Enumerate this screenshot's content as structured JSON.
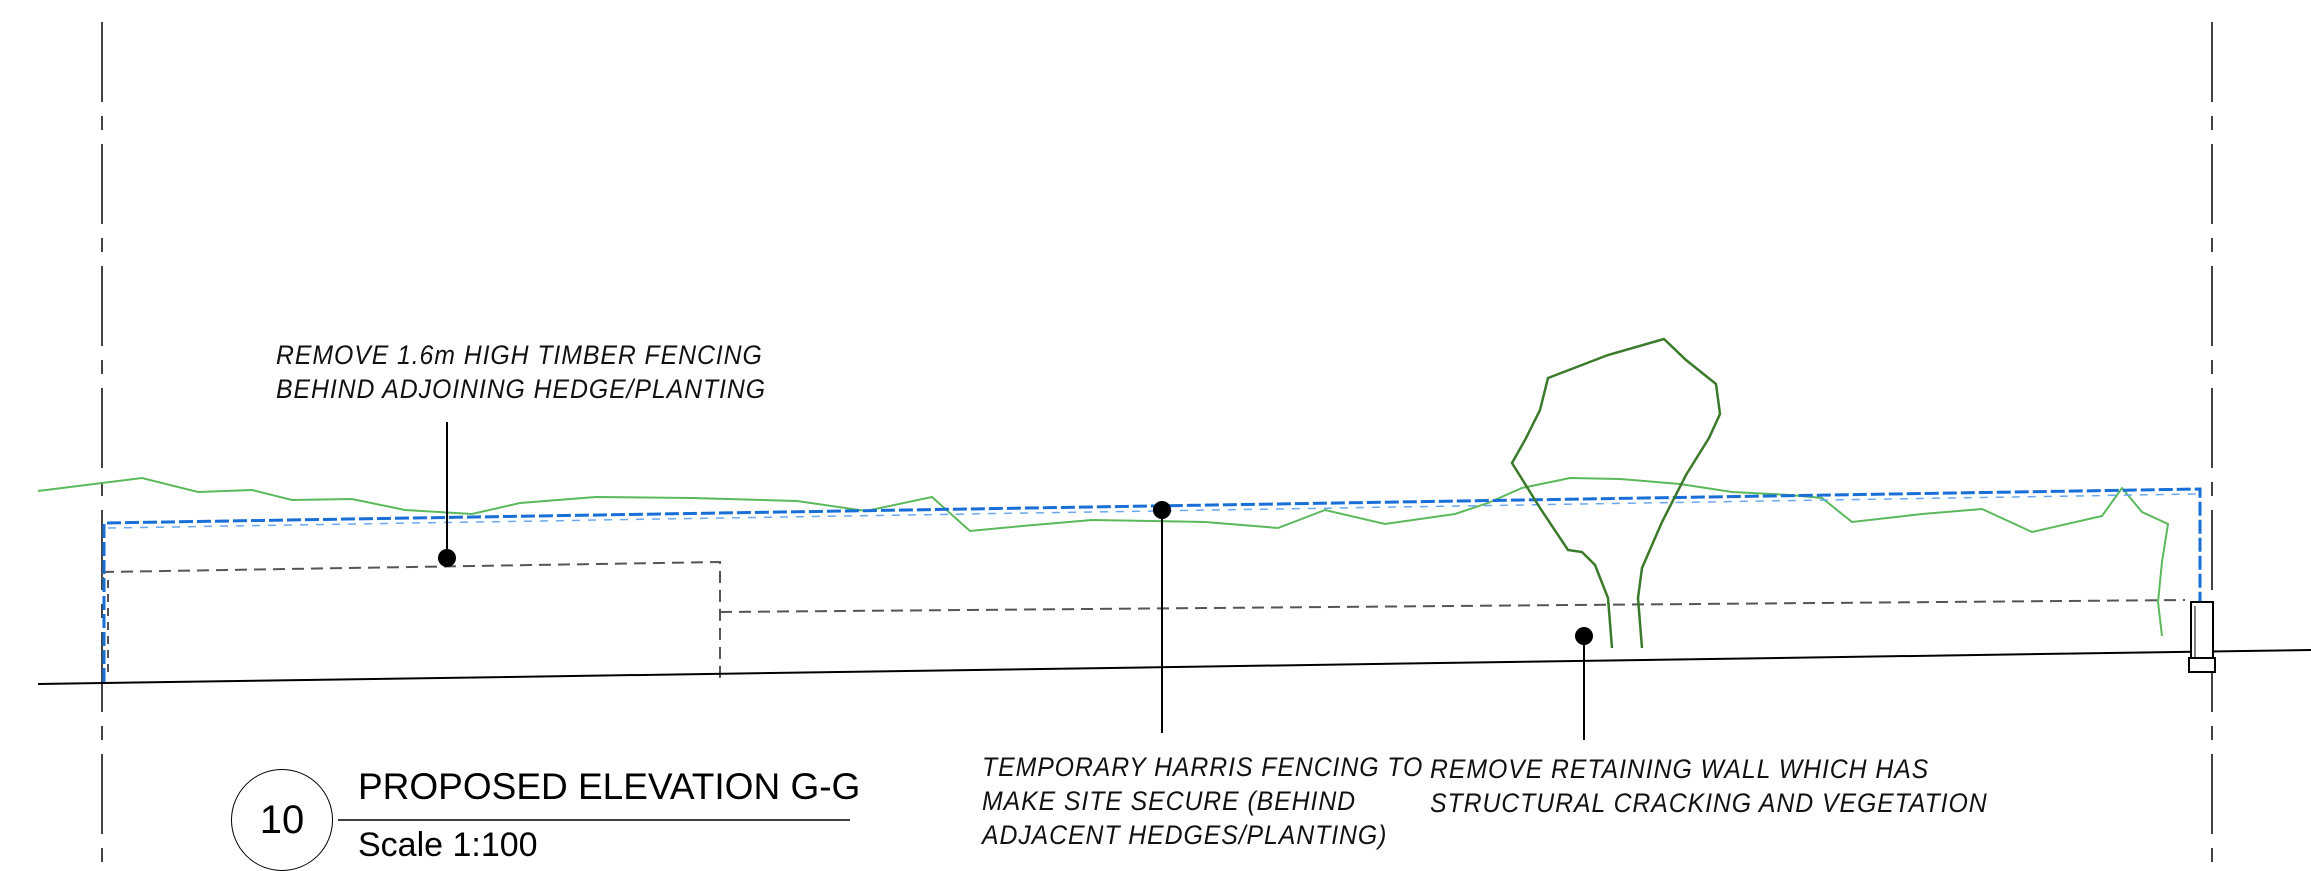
{
  "annotations": {
    "fence_removal": [
      "REMOVE 1.6m HIGH TIMBER FENCING",
      "BEHIND ADJOINING HEDGE/PLANTING"
    ],
    "harris_fencing": [
      "TEMPORARY HARRIS FENCING TO",
      "MAKE SITE SECURE (BEHIND",
      "ADJACENT HEDGES/PLANTING)"
    ],
    "retaining_wall": [
      "REMOVE RETAINING WALL WHICH HAS",
      "STRUCTURAL CRACKING AND VEGETATION"
    ]
  },
  "title_block": {
    "number": "10",
    "title": "PROPOSED ELEVATION G-G",
    "scale": "Scale 1:100"
  },
  "colors": {
    "harris_fence": "#1a6fd6",
    "hedge": "#5cb85c",
    "tree": "#3a7a2a",
    "linework": "#000000",
    "hidden_line": "#555555"
  }
}
